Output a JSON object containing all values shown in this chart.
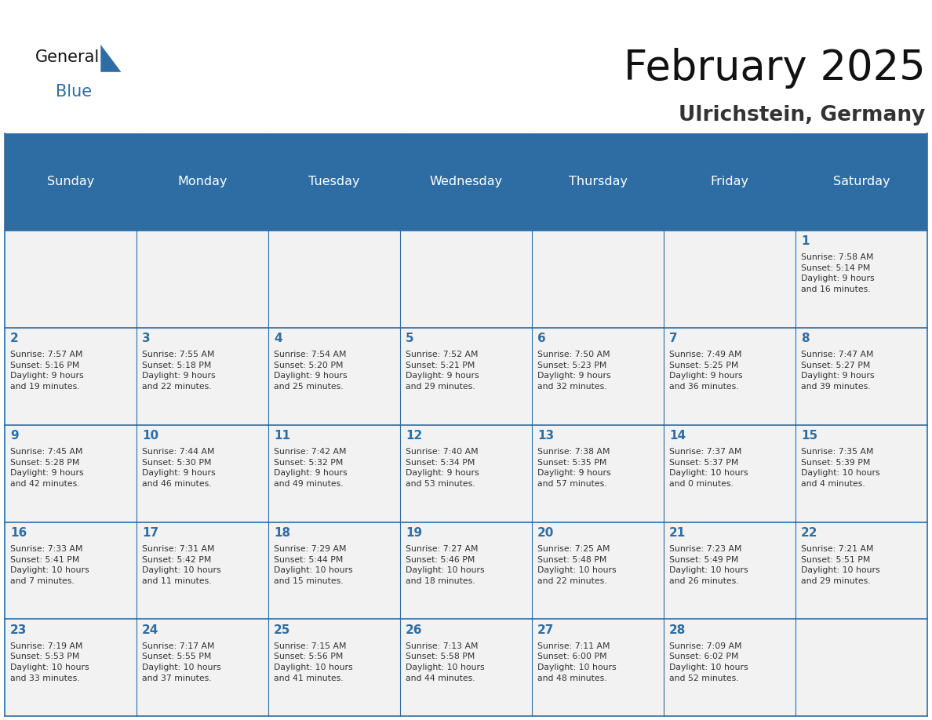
{
  "title": "February 2025",
  "subtitle": "Ulrichstein, Germany",
  "header_bg": "#2E6DA4",
  "header_text_color": "#FFFFFF",
  "cell_bg_light": "#F2F2F2",
  "day_number_color": "#2E6DA4",
  "text_color": "#333333",
  "border_color": "#2E6DA4",
  "days_of_week": [
    "Sunday",
    "Monday",
    "Tuesday",
    "Wednesday",
    "Thursday",
    "Friday",
    "Saturday"
  ],
  "weeks": [
    [
      {
        "day": null,
        "info": null
      },
      {
        "day": null,
        "info": null
      },
      {
        "day": null,
        "info": null
      },
      {
        "day": null,
        "info": null
      },
      {
        "day": null,
        "info": null
      },
      {
        "day": null,
        "info": null
      },
      {
        "day": 1,
        "info": "Sunrise: 7:58 AM\nSunset: 5:14 PM\nDaylight: 9 hours\nand 16 minutes."
      }
    ],
    [
      {
        "day": 2,
        "info": "Sunrise: 7:57 AM\nSunset: 5:16 PM\nDaylight: 9 hours\nand 19 minutes."
      },
      {
        "day": 3,
        "info": "Sunrise: 7:55 AM\nSunset: 5:18 PM\nDaylight: 9 hours\nand 22 minutes."
      },
      {
        "day": 4,
        "info": "Sunrise: 7:54 AM\nSunset: 5:20 PM\nDaylight: 9 hours\nand 25 minutes."
      },
      {
        "day": 5,
        "info": "Sunrise: 7:52 AM\nSunset: 5:21 PM\nDaylight: 9 hours\nand 29 minutes."
      },
      {
        "day": 6,
        "info": "Sunrise: 7:50 AM\nSunset: 5:23 PM\nDaylight: 9 hours\nand 32 minutes."
      },
      {
        "day": 7,
        "info": "Sunrise: 7:49 AM\nSunset: 5:25 PM\nDaylight: 9 hours\nand 36 minutes."
      },
      {
        "day": 8,
        "info": "Sunrise: 7:47 AM\nSunset: 5:27 PM\nDaylight: 9 hours\nand 39 minutes."
      }
    ],
    [
      {
        "day": 9,
        "info": "Sunrise: 7:45 AM\nSunset: 5:28 PM\nDaylight: 9 hours\nand 42 minutes."
      },
      {
        "day": 10,
        "info": "Sunrise: 7:44 AM\nSunset: 5:30 PM\nDaylight: 9 hours\nand 46 minutes."
      },
      {
        "day": 11,
        "info": "Sunrise: 7:42 AM\nSunset: 5:32 PM\nDaylight: 9 hours\nand 49 minutes."
      },
      {
        "day": 12,
        "info": "Sunrise: 7:40 AM\nSunset: 5:34 PM\nDaylight: 9 hours\nand 53 minutes."
      },
      {
        "day": 13,
        "info": "Sunrise: 7:38 AM\nSunset: 5:35 PM\nDaylight: 9 hours\nand 57 minutes."
      },
      {
        "day": 14,
        "info": "Sunrise: 7:37 AM\nSunset: 5:37 PM\nDaylight: 10 hours\nand 0 minutes."
      },
      {
        "day": 15,
        "info": "Sunrise: 7:35 AM\nSunset: 5:39 PM\nDaylight: 10 hours\nand 4 minutes."
      }
    ],
    [
      {
        "day": 16,
        "info": "Sunrise: 7:33 AM\nSunset: 5:41 PM\nDaylight: 10 hours\nand 7 minutes."
      },
      {
        "day": 17,
        "info": "Sunrise: 7:31 AM\nSunset: 5:42 PM\nDaylight: 10 hours\nand 11 minutes."
      },
      {
        "day": 18,
        "info": "Sunrise: 7:29 AM\nSunset: 5:44 PM\nDaylight: 10 hours\nand 15 minutes."
      },
      {
        "day": 19,
        "info": "Sunrise: 7:27 AM\nSunset: 5:46 PM\nDaylight: 10 hours\nand 18 minutes."
      },
      {
        "day": 20,
        "info": "Sunrise: 7:25 AM\nSunset: 5:48 PM\nDaylight: 10 hours\nand 22 minutes."
      },
      {
        "day": 21,
        "info": "Sunrise: 7:23 AM\nSunset: 5:49 PM\nDaylight: 10 hours\nand 26 minutes."
      },
      {
        "day": 22,
        "info": "Sunrise: 7:21 AM\nSunset: 5:51 PM\nDaylight: 10 hours\nand 29 minutes."
      }
    ],
    [
      {
        "day": 23,
        "info": "Sunrise: 7:19 AM\nSunset: 5:53 PM\nDaylight: 10 hours\nand 33 minutes."
      },
      {
        "day": 24,
        "info": "Sunrise: 7:17 AM\nSunset: 5:55 PM\nDaylight: 10 hours\nand 37 minutes."
      },
      {
        "day": 25,
        "info": "Sunrise: 7:15 AM\nSunset: 5:56 PM\nDaylight: 10 hours\nand 41 minutes."
      },
      {
        "day": 26,
        "info": "Sunrise: 7:13 AM\nSunset: 5:58 PM\nDaylight: 10 hours\nand 44 minutes."
      },
      {
        "day": 27,
        "info": "Sunrise: 7:11 AM\nSunset: 6:00 PM\nDaylight: 10 hours\nand 48 minutes."
      },
      {
        "day": 28,
        "info": "Sunrise: 7:09 AM\nSunset: 6:02 PM\nDaylight: 10 hours\nand 52 minutes."
      },
      {
        "day": null,
        "info": null
      }
    ]
  ]
}
